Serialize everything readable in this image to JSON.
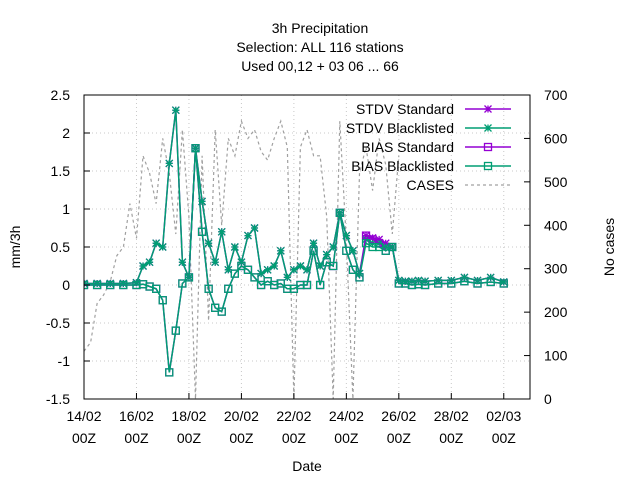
{
  "chart_data": {
    "type": "line",
    "title_lines": [
      "3h Precipitation",
      "Selection: ALL     116 stations",
      "Used  00,12 + 03 06 ... 66"
    ],
    "xlabel": "Date",
    "ylabel": "mm/3h",
    "y2label": "No cases",
    "xlim_days": [
      0,
      17
    ],
    "ylim": [
      -1.5,
      2.5
    ],
    "y2lim": [
      0,
      700
    ],
    "x_ticks": [
      {
        "line1": "14/02",
        "line2": "00Z"
      },
      {
        "line1": "16/02",
        "line2": "00Z"
      },
      {
        "line1": "18/02",
        "line2": "00Z"
      },
      {
        "line1": "20/02",
        "line2": "00Z"
      },
      {
        "line1": "22/02",
        "line2": "00Z"
      },
      {
        "line1": "24/02",
        "line2": "00Z"
      },
      {
        "line1": "26/02",
        "line2": "00Z"
      },
      {
        "line1": "28/02",
        "line2": "00Z"
      },
      {
        "line1": "02/03",
        "line2": "00Z"
      }
    ],
    "y_ticks": [
      "-1.5",
      "-1",
      "-0.5",
      "0",
      "0.5",
      "1",
      "1.5",
      "2",
      "2.5"
    ],
    "y2_ticks": [
      "0",
      "100",
      "200",
      "300",
      "400",
      "500",
      "600",
      "700"
    ],
    "grid": true,
    "legend_position": "top-right",
    "colors": {
      "standard": "#9400d3",
      "blacklisted": "#009e73",
      "cases": "#a0a0a0"
    },
    "series": [
      {
        "name": "STDV Standard",
        "axis": "y",
        "marker": "star",
        "x": [
          0.0,
          0.5,
          1.0,
          1.5,
          2.0,
          2.25,
          2.5,
          2.75,
          3.0,
          3.25,
          3.5,
          3.75,
          4.0,
          4.25,
          4.5,
          4.75,
          5.0,
          5.25,
          5.5,
          5.75,
          6.0,
          6.25,
          6.5,
          6.75,
          7.0,
          7.25,
          7.5,
          7.75,
          8.0,
          8.25,
          8.5,
          8.75,
          9.0,
          9.25,
          9.5,
          9.75,
          10.0,
          10.25,
          10.5,
          10.75,
          11.0,
          11.25,
          11.5,
          11.75,
          12.0,
          12.25,
          12.5,
          12.75,
          13.0,
          13.5,
          14.0,
          14.5,
          15.0,
          15.5,
          16.0
        ],
        "values": [
          0.02,
          0.02,
          0.02,
          0.02,
          0.03,
          0.25,
          0.3,
          0.55,
          0.5,
          1.6,
          2.3,
          0.3,
          0.1,
          1.8,
          1.1,
          0.55,
          0.3,
          0.7,
          0.2,
          0.5,
          0.3,
          0.65,
          0.75,
          0.15,
          0.2,
          0.25,
          0.45,
          0.1,
          0.2,
          0.25,
          0.2,
          0.55,
          0.25,
          0.4,
          0.5,
          0.95,
          0.65,
          0.45,
          0.15,
          0.65,
          0.62,
          0.6,
          0.55,
          0.5,
          0.06,
          0.05,
          0.05,
          0.06,
          0.05,
          0.06,
          0.06,
          0.1,
          0.06,
          0.1,
          0.04
        ]
      },
      {
        "name": "STDV Blacklisted",
        "axis": "y",
        "marker": "star",
        "x": [
          0.0,
          0.5,
          1.0,
          1.5,
          2.0,
          2.25,
          2.5,
          2.75,
          3.0,
          3.25,
          3.5,
          3.75,
          4.0,
          4.25,
          4.5,
          4.75,
          5.0,
          5.25,
          5.5,
          5.75,
          6.0,
          6.25,
          6.5,
          6.75,
          7.0,
          7.25,
          7.5,
          7.75,
          8.0,
          8.25,
          8.5,
          8.75,
          9.0,
          9.25,
          9.5,
          9.75,
          10.0,
          10.25,
          10.5,
          10.75,
          11.0,
          11.25,
          11.5,
          11.75,
          12.0,
          12.25,
          12.5,
          12.75,
          13.0,
          13.5,
          14.0,
          14.5,
          15.0,
          15.5,
          16.0
        ],
        "values": [
          0.02,
          0.02,
          0.02,
          0.02,
          0.03,
          0.25,
          0.3,
          0.55,
          0.5,
          1.6,
          2.3,
          0.3,
          0.1,
          1.8,
          1.1,
          0.55,
          0.3,
          0.7,
          0.2,
          0.5,
          0.3,
          0.65,
          0.75,
          0.15,
          0.2,
          0.25,
          0.45,
          0.1,
          0.2,
          0.25,
          0.2,
          0.55,
          0.25,
          0.4,
          0.5,
          0.95,
          0.65,
          0.45,
          0.15,
          0.6,
          0.55,
          0.55,
          0.5,
          0.5,
          0.06,
          0.05,
          0.05,
          0.06,
          0.05,
          0.06,
          0.06,
          0.1,
          0.06,
          0.1,
          0.04
        ]
      },
      {
        "name": "BIAS Standard",
        "axis": "y",
        "marker": "square",
        "x": [
          0.0,
          0.5,
          1.0,
          1.5,
          2.0,
          2.25,
          2.5,
          2.75,
          3.0,
          3.25,
          3.5,
          3.75,
          4.0,
          4.25,
          4.5,
          4.75,
          5.0,
          5.25,
          5.5,
          5.75,
          6.0,
          6.25,
          6.5,
          6.75,
          7.0,
          7.25,
          7.5,
          7.75,
          8.0,
          8.25,
          8.5,
          8.75,
          9.0,
          9.25,
          9.5,
          9.75,
          10.0,
          10.25,
          10.5,
          10.75,
          11.0,
          11.25,
          11.5,
          11.75,
          12.0,
          12.25,
          12.5,
          12.75,
          13.0,
          13.5,
          14.0,
          14.5,
          15.0,
          15.5,
          16.0
        ],
        "values": [
          0.0,
          0.0,
          0.0,
          0.0,
          0.0,
          0.01,
          -0.02,
          -0.05,
          -0.2,
          -1.15,
          -0.6,
          0.02,
          0.1,
          1.8,
          0.7,
          -0.05,
          -0.3,
          -0.35,
          -0.05,
          0.15,
          0.25,
          0.2,
          0.1,
          0.0,
          0.05,
          0.0,
          0.02,
          -0.05,
          -0.05,
          0.0,
          0.0,
          0.45,
          0.0,
          0.3,
          0.25,
          0.95,
          0.45,
          0.2,
          0.1,
          0.65,
          0.6,
          0.55,
          0.45,
          0.5,
          0.02,
          0.02,
          0.0,
          0.01,
          0.0,
          0.02,
          0.02,
          0.05,
          0.02,
          0.04,
          0.02
        ]
      },
      {
        "name": "BIAS Blacklisted",
        "axis": "y",
        "marker": "square",
        "x": [
          0.0,
          0.5,
          1.0,
          1.5,
          2.0,
          2.25,
          2.5,
          2.75,
          3.0,
          3.25,
          3.5,
          3.75,
          4.0,
          4.25,
          4.5,
          4.75,
          5.0,
          5.25,
          5.5,
          5.75,
          6.0,
          6.25,
          6.5,
          6.75,
          7.0,
          7.25,
          7.5,
          7.75,
          8.0,
          8.25,
          8.5,
          8.75,
          9.0,
          9.25,
          9.5,
          9.75,
          10.0,
          10.25,
          10.5,
          10.75,
          11.0,
          11.25,
          11.5,
          11.75,
          12.0,
          12.25,
          12.5,
          12.75,
          13.0,
          13.5,
          14.0,
          14.5,
          15.0,
          15.5,
          16.0
        ],
        "values": [
          0.0,
          0.0,
          0.0,
          0.0,
          0.0,
          0.01,
          -0.02,
          -0.05,
          -0.2,
          -1.15,
          -0.6,
          0.02,
          0.1,
          1.8,
          0.7,
          -0.05,
          -0.3,
          -0.35,
          -0.05,
          0.15,
          0.25,
          0.2,
          0.1,
          0.0,
          0.05,
          0.0,
          0.02,
          -0.05,
          -0.05,
          0.0,
          0.0,
          0.45,
          0.0,
          0.3,
          0.25,
          0.95,
          0.45,
          0.2,
          0.1,
          0.55,
          0.5,
          0.5,
          0.45,
          0.5,
          0.02,
          0.02,
          0.0,
          0.01,
          0.0,
          0.02,
          0.02,
          0.05,
          0.02,
          0.04,
          0.02
        ]
      },
      {
        "name": "CASES",
        "axis": "y2",
        "marker": "none",
        "x": [
          0.0,
          0.25,
          0.5,
          0.75,
          1.0,
          1.25,
          1.5,
          1.75,
          2.0,
          2.25,
          2.5,
          2.75,
          3.0,
          3.25,
          3.5,
          3.75,
          4.0,
          4.25,
          4.5,
          4.75,
          5.0,
          5.25,
          5.5,
          5.75,
          6.0,
          6.25,
          6.5,
          6.75,
          7.0,
          7.25,
          7.5,
          7.75,
          8.0,
          8.25,
          8.5,
          8.75,
          9.0,
          9.25,
          9.5,
          9.75,
          10.0,
          10.25,
          10.5,
          10.75,
          11.0,
          11.25,
          11.5,
          11.75,
          12.0
        ],
        "values": [
          110,
          130,
          220,
          240,
          270,
          330,
          350,
          450,
          370,
          560,
          520,
          450,
          600,
          520,
          380,
          620,
          420,
          0,
          560,
          180,
          620,
          400,
          600,
          560,
          640,
          600,
          620,
          570,
          550,
          600,
          640,
          580,
          0,
          580,
          620,
          560,
          560,
          420,
          0,
          640,
          360,
          0,
          520,
          580,
          480,
          600,
          540,
          380,
          560
        ]
      }
    ]
  }
}
